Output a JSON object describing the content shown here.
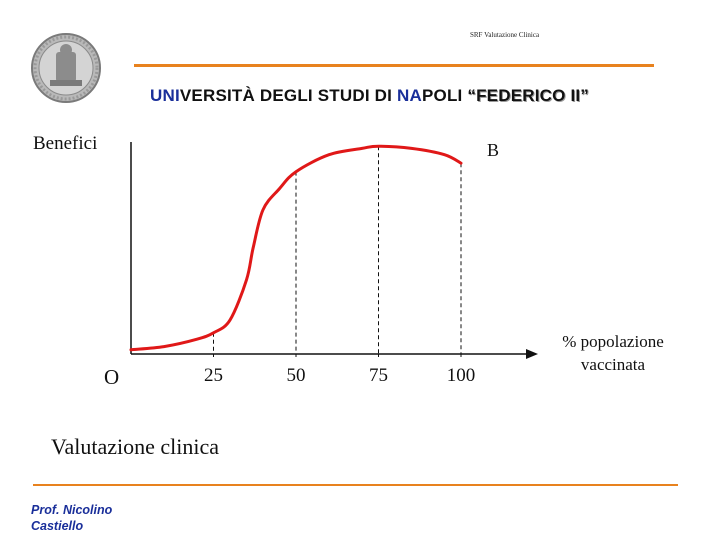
{
  "header": {
    "note": "SRF Valutazione Clinica",
    "university_parts": [
      {
        "text": "UNI",
        "style": "blue"
      },
      {
        "text": "VERSITÀ DEGLI  STUDI  DI  ",
        "style": "black"
      },
      {
        "text": "NA",
        "style": "blue"
      },
      {
        "text": "POLI ",
        "style": "black"
      },
      {
        "text": "“FEDERICO  II”",
        "style": "shadow"
      }
    ]
  },
  "footer": {
    "author_line1": "Prof. Nicolino",
    "author_line2": "Castiello"
  },
  "colors": {
    "accent_orange": "#e8821e",
    "curve_red": "#e01818",
    "text_blue": "#1a2f9a"
  },
  "chart_data": {
    "type": "line",
    "ylabel": "Benefici",
    "xlabel": "% popolazione vaccinata",
    "origin_label": "O",
    "curve_end_label": "B",
    "caption": "Valutazione clinica",
    "x_ticks": [
      "25",
      "50",
      "75",
      "100"
    ],
    "xlim": [
      0,
      120
    ],
    "ylim": [
      0,
      100
    ],
    "grid": false,
    "series": [
      {
        "points": [
          [
            0,
            2
          ],
          [
            10,
            3.5
          ],
          [
            20,
            7
          ],
          [
            25,
            10
          ],
          [
            30,
            16
          ],
          [
            35,
            35
          ],
          [
            37,
            50
          ],
          [
            40,
            68
          ],
          [
            45,
            78
          ],
          [
            50,
            86
          ],
          [
            60,
            94
          ],
          [
            70,
            97
          ],
          [
            75,
            98
          ],
          [
            85,
            97
          ],
          [
            95,
            94
          ],
          [
            100,
            90
          ]
        ]
      }
    ],
    "reference_lines_x": [
      25,
      50,
      75,
      100
    ]
  }
}
